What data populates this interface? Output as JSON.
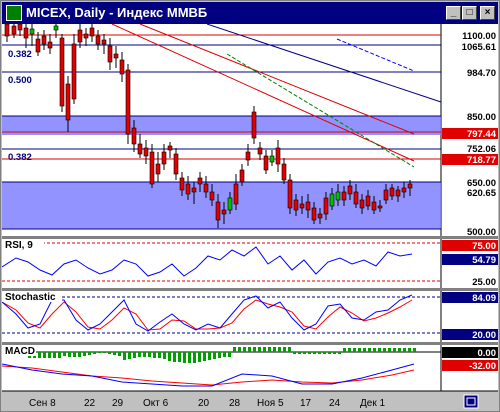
{
  "window": {
    "title": "MICEX, Daily - Индекс ММВБ",
    "buttons": {
      "minimize": "_",
      "maximize": "□",
      "close": "×"
    }
  },
  "colors": {
    "up_candle": "#00c000",
    "down_candle": "#e00000",
    "band": "#8080ff",
    "channel_red": "#e00000",
    "channel_blue": "#0000ff",
    "channel_green": "#008000",
    "rsi_line": "#0000ff",
    "stoch_main": "#0000ff",
    "stoch_signal": "#ff0000",
    "macd_hist": "#00a000",
    "macd_line": "#0000ff",
    "macd_signal": "#ff0000"
  },
  "main_panel": {
    "fib_labels": [
      "0.382",
      "0.500",
      "0.382"
    ],
    "price_labels": [
      "1100.00",
      "1065.61",
      "984.70",
      "850.00",
      "797.44",
      "752.06",
      "718.77",
      "650.00",
      "620.65",
      "500.00"
    ]
  },
  "rsi_panel": {
    "name": "RSI, 9",
    "labels": [
      "75.00",
      "54.79",
      "25.00"
    ]
  },
  "stoch_panel": {
    "name": "Stochastic",
    "labels": [
      "84.09",
      "20.00"
    ]
  },
  "macd_panel": {
    "name": "MACD",
    "labels": [
      "0.00",
      "-32.00"
    ]
  },
  "x_axis": {
    "labels": [
      "Сен 8",
      "22",
      "29",
      "Окт 6",
      "20",
      "28",
      "Ноя 5",
      "17",
      "24",
      "Дек 1"
    ]
  },
  "corner_icon": "chart-corner-icon"
}
